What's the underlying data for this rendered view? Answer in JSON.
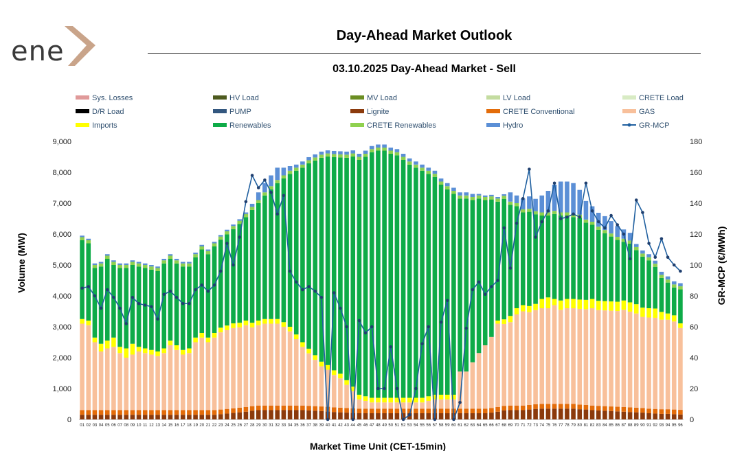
{
  "logo": {
    "text": "ene"
  },
  "chart_data": {
    "type": "bar",
    "title": "Day-Ahead Market Outlook",
    "subtitle": "03.10.2025  Day-Ahead Market - Sell",
    "xlabel": "Market Time Unit (CET-15min)",
    "ylabel": "Volume (MW)",
    "y2label": "GR-MCP (€/MWh)",
    "ylim": [
      0,
      9000
    ],
    "y2lim": [
      0,
      180
    ],
    "yticks": [
      "0",
      "1,000",
      "2,000",
      "3,000",
      "4,000",
      "5,000",
      "6,000",
      "7,000",
      "8,000",
      "9,000"
    ],
    "y2ticks": [
      "0",
      "20",
      "40",
      "60",
      "80",
      "100",
      "120",
      "140",
      "160",
      "180"
    ],
    "categories": [
      "01",
      "02",
      "03",
      "04",
      "05",
      "06",
      "07",
      "08",
      "09",
      "10",
      "11",
      "12",
      "13",
      "14",
      "15",
      "16",
      "17",
      "18",
      "19",
      "20",
      "21",
      "22",
      "23",
      "24",
      "25",
      "26",
      "27",
      "28",
      "29",
      "30",
      "31",
      "32",
      "33",
      "34",
      "35",
      "36",
      "37",
      "38",
      "39",
      "40",
      "41",
      "42",
      "43",
      "44",
      "45",
      "46",
      "47",
      "48",
      "49",
      "50",
      "51",
      "52",
      "53",
      "54",
      "55",
      "56",
      "57",
      "58",
      "59",
      "60",
      "61",
      "62",
      "63",
      "64",
      "65",
      "66",
      "67",
      "68",
      "69",
      "70",
      "71",
      "72",
      "73",
      "74",
      "75",
      "76",
      "77",
      "78",
      "79",
      "80",
      "81",
      "82",
      "83",
      "84",
      "85",
      "86",
      "87",
      "88",
      "89",
      "90",
      "91",
      "92",
      "93",
      "94",
      "95",
      "96"
    ],
    "legend": [
      "Sys. Losses",
      "HV Load",
      "MV Load",
      "LV Load",
      "CRETE Load",
      "D/R Load",
      "PUMP",
      "Lignite",
      "CRETE Conventional",
      "GAS",
      "Imports",
      "Renewables",
      "CRETE Renewables",
      "Hydro",
      "GR-MCP"
    ],
    "colors": {
      "Lignite": "#8b3a0c",
      "CRETE Conventional": "#e36c0a",
      "GAS": "#f8c09b",
      "Imports": "#ffff00",
      "Renewables": "#0eab48",
      "CRETE Renewables": "#8fd14f",
      "Hydro": "#5b8fd6",
      "GR-MCP": "#1f5f9f",
      "Sys. Losses": "#e09a9a",
      "HV Load": "#4e5b1f",
      "MV Load": "#6b8e23",
      "LV Load": "#c4dca0",
      "CRETE Load": "#d8ebc4",
      "D/R Load": "#000000",
      "PUMP": "#33577f"
    },
    "series": [
      {
        "name": "Lignite",
        "values": [
          150,
          150,
          150,
          150,
          150,
          150,
          150,
          150,
          150,
          150,
          150,
          150,
          150,
          150,
          150,
          150,
          150,
          150,
          150,
          150,
          150,
          150,
          170,
          190,
          210,
          230,
          250,
          280,
          300,
          300,
          300,
          300,
          300,
          300,
          300,
          300,
          290,
          280,
          270,
          260,
          240,
          230,
          220,
          210,
          200,
          200,
          200,
          200,
          200,
          200,
          200,
          200,
          200,
          200,
          200,
          200,
          200,
          200,
          200,
          200,
          200,
          200,
          200,
          200,
          200,
          220,
          250,
          290,
          300,
          300,
          300,
          320,
          340,
          350,
          350,
          350,
          350,
          350,
          350,
          330,
          320,
          300,
          290,
          280,
          270,
          260,
          250,
          240,
          230,
          220,
          200,
          190,
          180,
          180,
          170,
          160
        ]
      },
      {
        "name": "CRETE Conventional",
        "values": [
          150,
          150,
          150,
          150,
          150,
          150,
          150,
          150,
          150,
          150,
          150,
          150,
          150,
          150,
          150,
          150,
          150,
          150,
          150,
          150,
          150,
          150,
          150,
          150,
          150,
          150,
          150,
          150,
          150,
          150,
          150,
          150,
          150,
          150,
          150,
          150,
          150,
          150,
          150,
          150,
          150,
          150,
          150,
          150,
          150,
          150,
          150,
          150,
          150,
          150,
          150,
          150,
          150,
          150,
          150,
          150,
          150,
          150,
          150,
          150,
          150,
          150,
          150,
          150,
          150,
          150,
          150,
          150,
          150,
          150,
          150,
          150,
          150,
          150,
          150,
          150,
          150,
          150,
          150,
          150,
          150,
          150,
          150,
          150,
          150,
          150,
          150,
          150,
          150,
          150,
          150,
          150,
          150,
          150,
          150,
          150
        ]
      },
      {
        "name": "GAS",
        "values": [
          2800,
          2750,
          2200,
          1900,
          2000,
          2050,
          1850,
          1700,
          1800,
          1900,
          1850,
          1800,
          1750,
          1850,
          2100,
          1950,
          1800,
          1850,
          2200,
          2350,
          2200,
          2350,
          2500,
          2550,
          2600,
          2600,
          2650,
          2550,
          2600,
          2650,
          2650,
          2650,
          2550,
          2400,
          2150,
          1900,
          1700,
          1500,
          1300,
          1200,
          1050,
          950,
          750,
          550,
          300,
          250,
          200,
          200,
          200,
          200,
          200,
          200,
          200,
          200,
          200,
          250,
          300,
          300,
          300,
          300,
          1200,
          1200,
          1500,
          1800,
          2050,
          2300,
          2700,
          2650,
          2700,
          2950,
          3050,
          3000,
          3050,
          3100,
          3100,
          3200,
          3050,
          3100,
          3100,
          3100,
          3100,
          3150,
          3100,
          3100,
          3100,
          3100,
          3150,
          3100,
          3050,
          2950,
          2950,
          2950,
          2900,
          2900,
          2850,
          2650
        ]
      },
      {
        "name": "Imports",
        "values": [
          150,
          150,
          150,
          250,
          250,
          300,
          200,
          300,
          350,
          150,
          150,
          150,
          150,
          150,
          150,
          150,
          150,
          150,
          150,
          150,
          150,
          150,
          150,
          150,
          150,
          150,
          150,
          150,
          150,
          150,
          150,
          150,
          150,
          150,
          150,
          150,
          150,
          150,
          150,
          150,
          150,
          150,
          150,
          150,
          150,
          150,
          150,
          150,
          150,
          150,
          150,
          150,
          150,
          150,
          150,
          150,
          150,
          150,
          150,
          150,
          0,
          0,
          0,
          0,
          0,
          0,
          100,
          150,
          200,
          200,
          200,
          200,
          200,
          300,
          350,
          200,
          300,
          300,
          300,
          300,
          300,
          300,
          300,
          300,
          300,
          300,
          300,
          300,
          300,
          300,
          300,
          300,
          250,
          200,
          200,
          150
        ]
      },
      {
        "name": "Renewables",
        "values": [
          2550,
          2500,
          2250,
          2500,
          2650,
          2350,
          2550,
          2600,
          2550,
          2600,
          2600,
          2600,
          2600,
          2750,
          2650,
          2650,
          2700,
          2650,
          2600,
          2700,
          2700,
          2800,
          2850,
          2950,
          3050,
          3200,
          3350,
          3650,
          3800,
          4000,
          4200,
          4400,
          4650,
          4950,
          5300,
          5650,
          6000,
          6300,
          6600,
          6750,
          6900,
          7000,
          7200,
          7450,
          7600,
          7750,
          7950,
          8000,
          8000,
          7900,
          7850,
          7700,
          7550,
          7450,
          7350,
          7200,
          7050,
          6800,
          6650,
          6500,
          5600,
          5600,
          5250,
          5000,
          4700,
          4450,
          3850,
          3900,
          3600,
          3300,
          3000,
          3050,
          2900,
          2700,
          2650,
          2750,
          2750,
          2700,
          2650,
          2650,
          2500,
          2400,
          2300,
          2200,
          2100,
          2000,
          1900,
          1900,
          1750,
          1650,
          1550,
          1350,
          1100,
          1000,
          900,
          1100
        ]
      },
      {
        "name": "CRETE Renewables",
        "values": [
          100,
          100,
          100,
          100,
          100,
          100,
          100,
          100,
          100,
          100,
          100,
          100,
          100,
          100,
          100,
          100,
          100,
          100,
          100,
          100,
          100,
          100,
          100,
          100,
          100,
          100,
          100,
          100,
          100,
          100,
          100,
          100,
          100,
          100,
          100,
          100,
          100,
          100,
          100,
          100,
          100,
          100,
          100,
          100,
          100,
          100,
          100,
          100,
          100,
          100,
          100,
          100,
          100,
          100,
          100,
          100,
          100,
          100,
          100,
          100,
          100,
          100,
          100,
          100,
          100,
          100,
          100,
          100,
          100,
          100,
          100,
          100,
          100,
          100,
          100,
          100,
          100,
          100,
          100,
          100,
          100,
          100,
          100,
          100,
          100,
          100,
          100,
          100,
          100,
          100,
          100,
          100,
          100,
          100,
          100,
          100
        ]
      },
      {
        "name": "Hydro",
        "values": [
          50,
          50,
          50,
          50,
          50,
          50,
          50,
          50,
          50,
          50,
          50,
          50,
          50,
          50,
          50,
          50,
          50,
          50,
          50,
          50,
          50,
          50,
          50,
          50,
          50,
          50,
          50,
          100,
          250,
          300,
          350,
          400,
          250,
          150,
          100,
          100,
          100,
          100,
          100,
          100,
          100,
          100,
          100,
          100,
          100,
          100,
          100,
          100,
          100,
          100,
          100,
          100,
          100,
          100,
          100,
          100,
          100,
          100,
          100,
          100,
          100,
          100,
          100,
          50,
          50,
          50,
          50,
          50,
          300,
          250,
          350,
          400,
          400,
          550,
          700,
          850,
          1000,
          1000,
          1000,
          800,
          600,
          500,
          450,
          450,
          400,
          350,
          300,
          250,
          100,
          100,
          100,
          100,
          100,
          100,
          100,
          100
        ]
      }
    ],
    "gr_mcp": [
      85,
      86,
      80,
      72,
      84,
      79,
      72,
      62,
      79,
      75,
      74,
      73,
      65,
      81,
      83,
      79,
      75,
      75,
      84,
      87,
      83,
      87,
      96,
      114,
      100,
      118,
      141,
      158,
      150,
      155,
      147,
      133,
      145,
      96,
      89,
      84,
      86,
      83,
      79,
      0,
      82,
      72,
      60,
      0,
      64,
      56,
      60,
      20,
      20,
      47,
      20,
      0,
      3,
      20,
      49,
      60,
      0,
      63,
      77,
      0,
      11,
      59,
      84,
      89,
      81,
      86,
      90,
      124,
      98,
      127,
      143,
      162,
      118,
      128,
      135,
      153,
      130,
      131,
      133,
      131,
      153,
      135,
      128,
      124,
      132,
      126,
      120,
      104,
      142,
      134,
      114,
      105,
      117,
      105,
      100,
      96
    ]
  }
}
